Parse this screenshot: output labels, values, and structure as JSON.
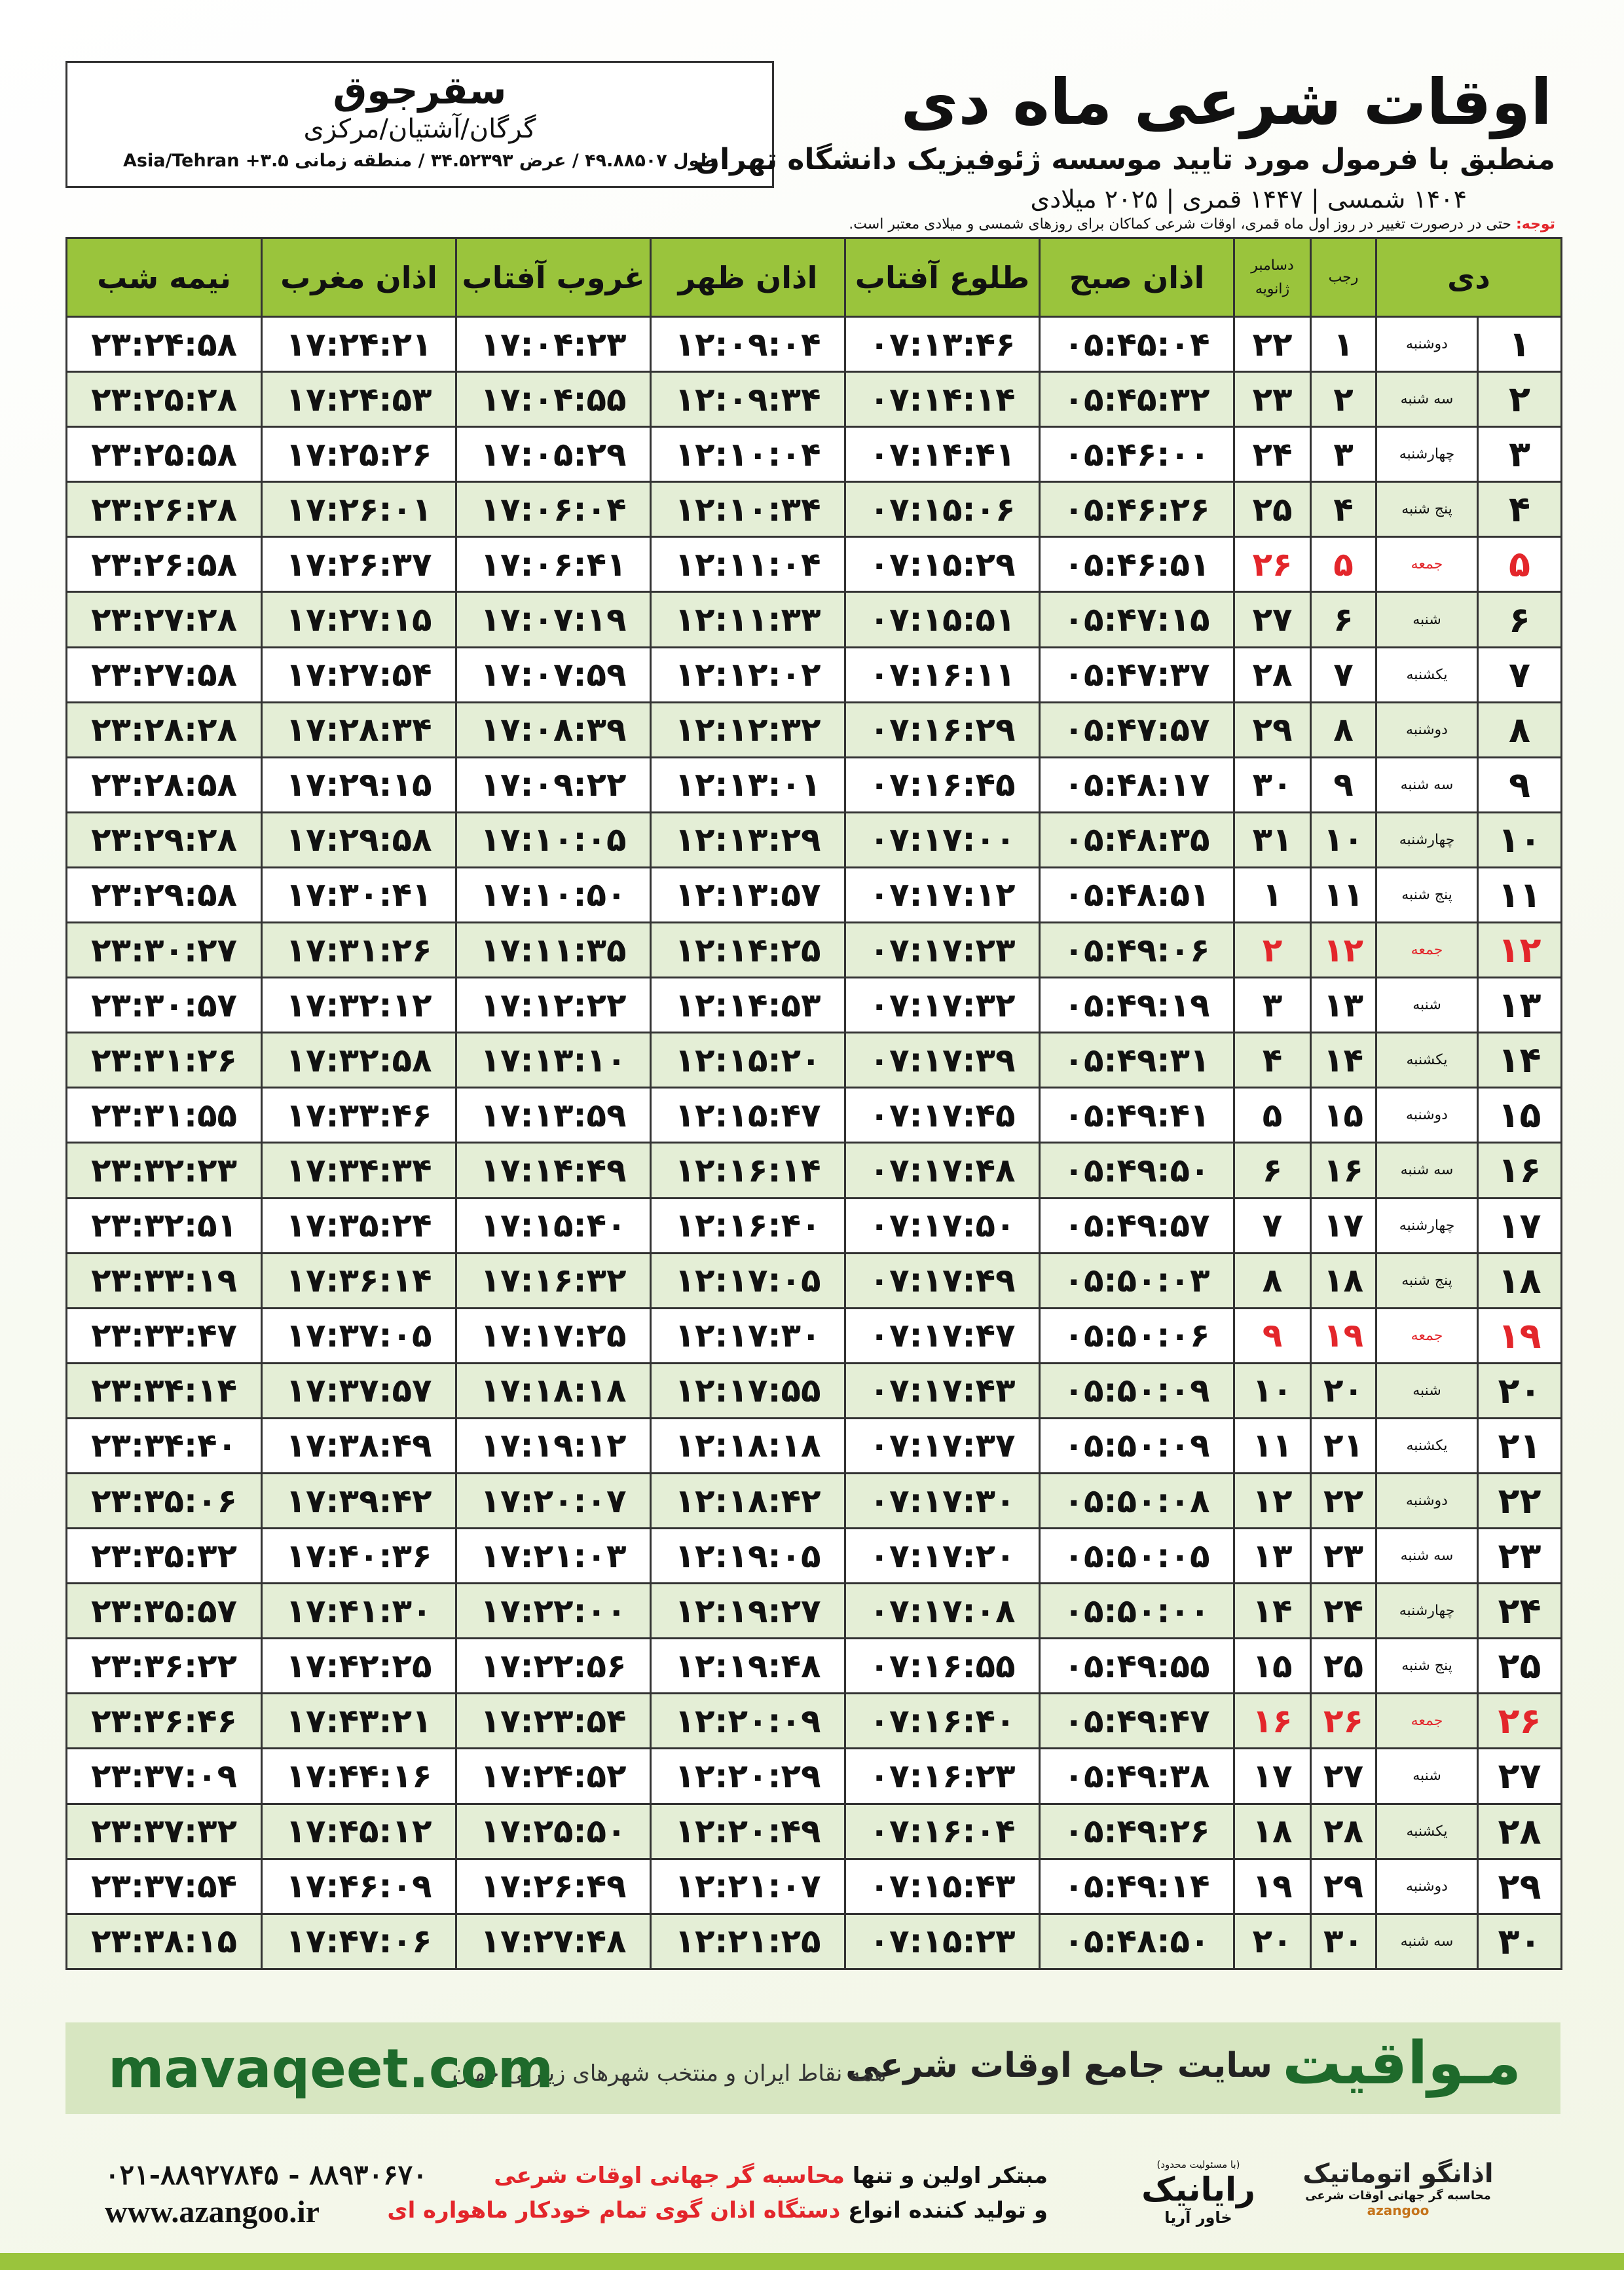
{
  "header": {
    "title": "اوقات شرعی ماه دی",
    "subtitle": "منطبق با فرمول مورد تایید موسسه ژئوفیزیک دانشگاه تهران",
    "dates": "۱۴۰۴ شمسی | ۱۴۴۷ قمری | ۲۰۲۵ میلادی"
  },
  "location": {
    "city": "سقرجوق",
    "region": "گرگان/آشتیان/مرکزی",
    "coords": "طول ۴۹.۸۸۵۰۷ / عرض ۳۴.۵۲۳۹۳ / منطقه زمانی ۳.۵+ Asia/Tehran"
  },
  "note": {
    "label": "توجه:",
    "text": "حتی در درصورت تغییر در روز اول ماه قمری، اوقات شرعی کماکان برای روزهای شمسی و میلادی معتبر است."
  },
  "table": {
    "columns": [
      "دی",
      "رجب",
      "دسامبر",
      "ژانویه",
      "اذان صبح",
      "طلوع آفتاب",
      "اذان ظهر",
      "غروب آفتاب",
      "اذان مغرب",
      "نیمه شب"
    ],
    "holiday_color": "#e3262b",
    "rows": [
      {
        "cells": [
          "۱",
          "دوشنبه",
          "۱",
          "۲۲",
          "۰۵:۴۵:۰۴",
          "۰۷:۱۳:۴۶",
          "۱۲:۰۹:۰۴",
          "۱۷:۰۴:۲۳",
          "۱۷:۲۴:۲۱",
          "۲۳:۲۴:۵۸"
        ]
      },
      {
        "cells": [
          "۲",
          "سه شنبه",
          "۲",
          "۲۳",
          "۰۵:۴۵:۳۲",
          "۰۷:۱۴:۱۴",
          "۱۲:۰۹:۳۴",
          "۱۷:۰۴:۵۵",
          "۱۷:۲۴:۵۳",
          "۲۳:۲۵:۲۸"
        ]
      },
      {
        "cells": [
          "۳",
          "چهارشنبه",
          "۳",
          "۲۴",
          "۰۵:۴۶:۰۰",
          "۰۷:۱۴:۴۱",
          "۱۲:۱۰:۰۴",
          "۱۷:۰۵:۲۹",
          "۱۷:۲۵:۲۶",
          "۲۳:۲۵:۵۸"
        ]
      },
      {
        "cells": [
          "۴",
          "پنج شنبه",
          "۴",
          "۲۵",
          "۰۵:۴۶:۲۶",
          "۰۷:۱۵:۰۶",
          "۱۲:۱۰:۳۴",
          "۱۷:۰۶:۰۴",
          "۱۷:۲۶:۰۱",
          "۲۳:۲۶:۲۸"
        ]
      },
      {
        "cells": [
          "۵",
          "جمعه",
          "۵",
          "۲۶",
          "۰۵:۴۶:۵۱",
          "۰۷:۱۵:۲۹",
          "۱۲:۱۱:۰۴",
          "۱۷:۰۶:۴۱",
          "۱۷:۲۶:۳۷",
          "۲۳:۲۶:۵۸"
        ],
        "holiday": true
      },
      {
        "cells": [
          "۶",
          "شنبه",
          "۶",
          "۲۷",
          "۰۵:۴۷:۱۵",
          "۰۷:۱۵:۵۱",
          "۱۲:۱۱:۳۳",
          "۱۷:۰۷:۱۹",
          "۱۷:۲۷:۱۵",
          "۲۳:۲۷:۲۸"
        ]
      },
      {
        "cells": [
          "۷",
          "یکشنبه",
          "۷",
          "۲۸",
          "۰۵:۴۷:۳۷",
          "۰۷:۱۶:۱۱",
          "۱۲:۱۲:۰۲",
          "۱۷:۰۷:۵۹",
          "۱۷:۲۷:۵۴",
          "۲۳:۲۷:۵۸"
        ]
      },
      {
        "cells": [
          "۸",
          "دوشنبه",
          "۸",
          "۲۹",
          "۰۵:۴۷:۵۷",
          "۰۷:۱۶:۲۹",
          "۱۲:۱۲:۳۲",
          "۱۷:۰۸:۳۹",
          "۱۷:۲۸:۳۴",
          "۲۳:۲۸:۲۸"
        ]
      },
      {
        "cells": [
          "۹",
          "سه شنبه",
          "۹",
          "۳۰",
          "۰۵:۴۸:۱۷",
          "۰۷:۱۶:۴۵",
          "۱۲:۱۳:۰۱",
          "۱۷:۰۹:۲۲",
          "۱۷:۲۹:۱۵",
          "۲۳:۲۸:۵۸"
        ]
      },
      {
        "cells": [
          "۱۰",
          "چهارشنبه",
          "۱۰",
          "۳۱",
          "۰۵:۴۸:۳۵",
          "۰۷:۱۷:۰۰",
          "۱۲:۱۳:۲۹",
          "۱۷:۱۰:۰۵",
          "۱۷:۲۹:۵۸",
          "۲۳:۲۹:۲۸"
        ]
      },
      {
        "cells": [
          "۱۱",
          "پنج شنبه",
          "۱۱",
          "۱",
          "۰۵:۴۸:۵۱",
          "۰۷:۱۷:۱۲",
          "۱۲:۱۳:۵۷",
          "۱۷:۱۰:۵۰",
          "۱۷:۳۰:۴۱",
          "۲۳:۲۹:۵۸"
        ]
      },
      {
        "cells": [
          "۱۲",
          "جمعه",
          "۱۲",
          "۲",
          "۰۵:۴۹:۰۶",
          "۰۷:۱۷:۲۳",
          "۱۲:۱۴:۲۵",
          "۱۷:۱۱:۳۵",
          "۱۷:۳۱:۲۶",
          "۲۳:۳۰:۲۷"
        ],
        "holiday": true
      },
      {
        "cells": [
          "۱۳",
          "شنبه",
          "۱۳",
          "۳",
          "۰۵:۴۹:۱۹",
          "۰۷:۱۷:۳۲",
          "۱۲:۱۴:۵۳",
          "۱۷:۱۲:۲۲",
          "۱۷:۳۲:۱۲",
          "۲۳:۳۰:۵۷"
        ]
      },
      {
        "cells": [
          "۱۴",
          "یکشنبه",
          "۱۴",
          "۴",
          "۰۵:۴۹:۳۱",
          "۰۷:۱۷:۳۹",
          "۱۲:۱۵:۲۰",
          "۱۷:۱۳:۱۰",
          "۱۷:۳۲:۵۸",
          "۲۳:۳۱:۲۶"
        ]
      },
      {
        "cells": [
          "۱۵",
          "دوشنبه",
          "۱۵",
          "۵",
          "۰۵:۴۹:۴۱",
          "۰۷:۱۷:۴۵",
          "۱۲:۱۵:۴۷",
          "۱۷:۱۳:۵۹",
          "۱۷:۳۳:۴۶",
          "۲۳:۳۱:۵۵"
        ]
      },
      {
        "cells": [
          "۱۶",
          "سه شنبه",
          "۱۶",
          "۶",
          "۰۵:۴۹:۵۰",
          "۰۷:۱۷:۴۸",
          "۱۲:۱۶:۱۴",
          "۱۷:۱۴:۴۹",
          "۱۷:۳۴:۳۴",
          "۲۳:۳۲:۲۳"
        ]
      },
      {
        "cells": [
          "۱۷",
          "چهارشنبه",
          "۱۷",
          "۷",
          "۰۵:۴۹:۵۷",
          "۰۷:۱۷:۵۰",
          "۱۲:۱۶:۴۰",
          "۱۷:۱۵:۴۰",
          "۱۷:۳۵:۲۴",
          "۲۳:۳۲:۵۱"
        ]
      },
      {
        "cells": [
          "۱۸",
          "پنج شنبه",
          "۱۸",
          "۸",
          "۰۵:۵۰:۰۳",
          "۰۷:۱۷:۴۹",
          "۱۲:۱۷:۰۵",
          "۱۷:۱۶:۳۲",
          "۱۷:۳۶:۱۴",
          "۲۳:۳۳:۱۹"
        ]
      },
      {
        "cells": [
          "۱۹",
          "جمعه",
          "۱۹",
          "۹",
          "۰۵:۵۰:۰۶",
          "۰۷:۱۷:۴۷",
          "۱۲:۱۷:۳۰",
          "۱۷:۱۷:۲۵",
          "۱۷:۳۷:۰۵",
          "۲۳:۳۳:۴۷"
        ],
        "holiday": true
      },
      {
        "cells": [
          "۲۰",
          "شنبه",
          "۲۰",
          "۱۰",
          "۰۵:۵۰:۰۹",
          "۰۷:۱۷:۴۳",
          "۱۲:۱۷:۵۵",
          "۱۷:۱۸:۱۸",
          "۱۷:۳۷:۵۷",
          "۲۳:۳۴:۱۴"
        ]
      },
      {
        "cells": [
          "۲۱",
          "یکشنبه",
          "۲۱",
          "۱۱",
          "۰۵:۵۰:۰۹",
          "۰۷:۱۷:۳۷",
          "۱۲:۱۸:۱۸",
          "۱۷:۱۹:۱۲",
          "۱۷:۳۸:۴۹",
          "۲۳:۳۴:۴۰"
        ]
      },
      {
        "cells": [
          "۲۲",
          "دوشنبه",
          "۲۲",
          "۱۲",
          "۰۵:۵۰:۰۸",
          "۰۷:۱۷:۳۰",
          "۱۲:۱۸:۴۲",
          "۱۷:۲۰:۰۷",
          "۱۷:۳۹:۴۲",
          "۲۳:۳۵:۰۶"
        ]
      },
      {
        "cells": [
          "۲۳",
          "سه شنبه",
          "۲۳",
          "۱۳",
          "۰۵:۵۰:۰۵",
          "۰۷:۱۷:۲۰",
          "۱۲:۱۹:۰۵",
          "۱۷:۲۱:۰۳",
          "۱۷:۴۰:۳۶",
          "۲۳:۳۵:۳۲"
        ]
      },
      {
        "cells": [
          "۲۴",
          "چهارشنبه",
          "۲۴",
          "۱۴",
          "۰۵:۵۰:۰۰",
          "۰۷:۱۷:۰۸",
          "۱۲:۱۹:۲۷",
          "۱۷:۲۲:۰۰",
          "۱۷:۴۱:۳۰",
          "۲۳:۳۵:۵۷"
        ]
      },
      {
        "cells": [
          "۲۵",
          "پنج شنبه",
          "۲۵",
          "۱۵",
          "۰۵:۴۹:۵۵",
          "۰۷:۱۶:۵۵",
          "۱۲:۱۹:۴۸",
          "۱۷:۲۲:۵۶",
          "۱۷:۴۲:۲۵",
          "۲۳:۳۶:۲۲"
        ]
      },
      {
        "cells": [
          "۲۶",
          "جمعه",
          "۲۶",
          "۱۶",
          "۰۵:۴۹:۴۷",
          "۰۷:۱۶:۴۰",
          "۱۲:۲۰:۰۹",
          "۱۷:۲۳:۵۴",
          "۱۷:۴۳:۲۱",
          "۲۳:۳۶:۴۶"
        ],
        "holiday": true
      },
      {
        "cells": [
          "۲۷",
          "شنبه",
          "۲۷",
          "۱۷",
          "۰۵:۴۹:۳۸",
          "۰۷:۱۶:۲۳",
          "۱۲:۲۰:۲۹",
          "۱۷:۲۴:۵۲",
          "۱۷:۴۴:۱۶",
          "۲۳:۳۷:۰۹"
        ]
      },
      {
        "cells": [
          "۲۸",
          "یکشنبه",
          "۲۸",
          "۱۸",
          "۰۵:۴۹:۲۶",
          "۰۷:۱۶:۰۴",
          "۱۲:۲۰:۴۹",
          "۱۷:۲۵:۵۰",
          "۱۷:۴۵:۱۲",
          "۲۳:۳۷:۳۲"
        ]
      },
      {
        "cells": [
          "۲۹",
          "دوشنبه",
          "۲۹",
          "۱۹",
          "۰۵:۴۹:۱۴",
          "۰۷:۱۵:۴۳",
          "۱۲:۲۱:۰۷",
          "۱۷:۲۶:۴۹",
          "۱۷:۴۶:۰۹",
          "۲۳:۳۷:۵۴"
        ]
      },
      {
        "cells": [
          "۳۰",
          "سه شنبه",
          "۳۰",
          "۲۰",
          "۰۵:۴۸:۵۰",
          "۰۷:۱۵:۲۳",
          "۱۲:۲۱:۲۵",
          "۱۷:۲۷:۴۸",
          "۱۷:۴۷:۰۶",
          "۲۳:۳۸:۱۵"
        ]
      }
    ]
  },
  "banner": {
    "brand": "مـواقیت",
    "slogan": "سایت جامع اوقات شرعی",
    "coverage": "همه نقاط ایران و منتخب شهرهای زیارتی جهان",
    "site": "mavaqeet.com"
  },
  "footer": {
    "phone": "۰۲۱-۸۸۹۲۷۸۴۵ - ۸۸۹۳۰۶۷۰",
    "web": "www.azangoo.ir",
    "line1": [
      "مبتکر اولین و تنها",
      "محاسبه گر جهانی اوقات شرعی"
    ],
    "line2": [
      "و تولید کننده انواع",
      "دستگاه اذان گوی تمام خودکار ماهواره ای"
    ],
    "logo1_note": "(با مسئولیت محدود)",
    "logo1": "رایانیک",
    "logo1_sub": "خاور آریا",
    "logo2": "اذانگو اتوماتیک",
    "logo2_sub": "محاسبه گر جهانی اوقات شرعی",
    "logo2_en": "azangoo"
  }
}
